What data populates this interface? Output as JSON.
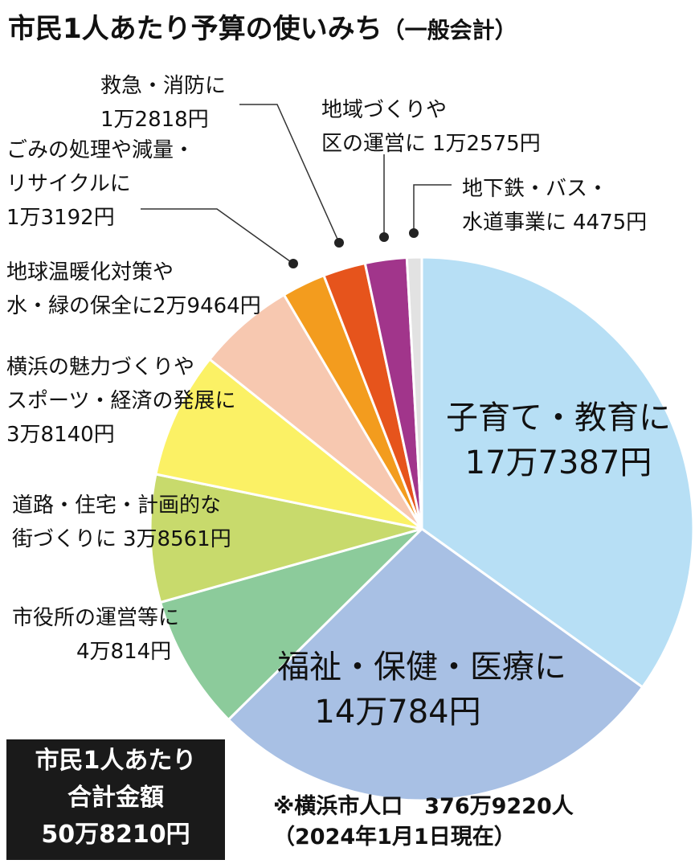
{
  "chart_data": {
    "type": "pie",
    "title": "市民1人あたり予算の使いみち",
    "subtitle": "（一般会計）",
    "categories": [
      [
        "子育て・教育に"
      ],
      [
        "福祉・保健・医療に"
      ],
      [
        "市役所の運営等に"
      ],
      [
        "道路・住宅・計画的な",
        "街づくりに"
      ],
      [
        "横浜の魅力づくりや",
        "スポーツ・経済の発展に"
      ],
      [
        "地球温暖化対策や",
        "水・緑の保全に"
      ],
      [
        "ごみの処理や減量・",
        "リサイクルに"
      ],
      [
        "救急・消防に"
      ],
      [
        "地域づくりや",
        "区の運営に"
      ],
      [
        "地下鉄・バス・",
        "水道事業に"
      ]
    ],
    "values": [
      177387,
      140784,
      40814,
      38561,
      38140,
      29464,
      13192,
      12818,
      12575,
      4475
    ],
    "value_labels": [
      "17万7387円",
      "14万784円",
      "4万814円",
      "3万8561円",
      "3万8140円",
      "2万9464円",
      "1万3192円",
      "1万2818円",
      "1万2575円",
      "4475円"
    ],
    "colors": [
      "#b7dff5",
      "#a8c0e4",
      "#8ccb9b",
      "#c8da6c",
      "#fbf165",
      "#f7c8b0",
      "#f39c1e",
      "#e6541c",
      "#a1358b",
      "#e2e2e2"
    ],
    "total": {
      "label": [
        "市民1人あたり",
        "合計金額"
      ],
      "value": 508210,
      "value_label": "50万8210円"
    },
    "notes": [
      "※横浜市人口　376万9220人",
      "（2024年1月1日現在）"
    ]
  }
}
